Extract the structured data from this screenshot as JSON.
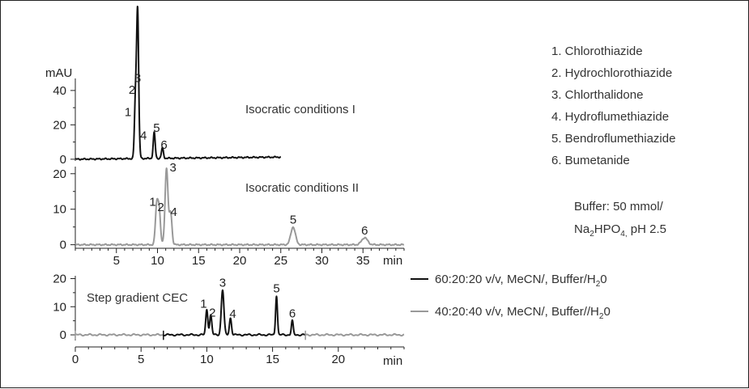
{
  "chart_data": [
    {
      "type": "line",
      "ylabel": "mAU",
      "ylim": [
        -1,
        47
      ],
      "yticks": [
        0,
        20,
        40
      ],
      "xlim": [
        0,
        40
      ],
      "condition_label": "Isocratic conditions I",
      "baseline_end": 25,
      "series": [
        {
          "color": "#111111",
          "peaks": [
            {
              "label": "1",
              "x": 7.3,
              "height": 29,
              "width": 0.12
            },
            {
              "label": "2",
              "x": 7.5,
              "height": 41,
              "width": 0.12
            },
            {
              "label": "3",
              "x": 7.6,
              "height": 44,
              "width": 0.1
            },
            {
              "label": "4",
              "x": 7.7,
              "height": 18,
              "width": 0.12
            },
            {
              "label": "5",
              "x": 9.6,
              "height": 15,
              "width": 0.12
            },
            {
              "label": "6",
              "x": 10.6,
              "height": 6,
              "width": 0.12
            }
          ]
        }
      ]
    },
    {
      "type": "line",
      "ylim": [
        -1,
        22
      ],
      "yticks": [
        0,
        10,
        20
      ],
      "xlim": [
        0,
        40
      ],
      "xticks": [
        5,
        10,
        15,
        20,
        25,
        30,
        35
      ],
      "xlabel": "min",
      "condition_label": "Isocratic conditions II",
      "series": [
        {
          "color": "#999999",
          "peaks": [
            {
              "label": "1",
              "x": 9.9,
              "height": 10.5,
              "width": 0.16
            },
            {
              "label": "2",
              "x": 10.2,
              "height": 9.5,
              "width": 0.16
            },
            {
              "label": "3",
              "x": 11.1,
              "height": 21.5,
              "width": 0.18
            },
            {
              "label": "4",
              "x": 11.6,
              "height": 9,
              "width": 0.16
            },
            {
              "label": "5",
              "x": 26.5,
              "height": 5,
              "width": 0.28
            },
            {
              "label": "6",
              "x": 35.2,
              "height": 2,
              "width": 0.35
            }
          ]
        }
      ]
    },
    {
      "type": "line",
      "ylim": [
        -2,
        21
      ],
      "yticks": [
        0,
        10,
        20
      ],
      "xlim": [
        0,
        25
      ],
      "xticks": [
        0,
        5,
        10,
        15,
        20
      ],
      "xlabel": "min",
      "condition_label": "Step gradient CEC",
      "series": [
        {
          "color": "#999999",
          "segment": [
            0,
            6.7
          ]
        },
        {
          "color": "#111111",
          "segment": [
            6.7,
            17.5
          ],
          "peaks": [
            {
              "label": "1",
              "x": 10.0,
              "height": 9,
              "width": 0.08
            },
            {
              "label": "2",
              "x": 10.3,
              "height": 7,
              "width": 0.08
            },
            {
              "label": "3",
              "x": 11.2,
              "height": 16,
              "width": 0.1
            },
            {
              "label": "4",
              "x": 11.8,
              "height": 6,
              "width": 0.08
            },
            {
              "label": "5",
              "x": 15.3,
              "height": 14,
              "width": 0.07
            },
            {
              "label": "6",
              "x": 16.5,
              "height": 5,
              "width": 0.07
            }
          ]
        },
        {
          "color": "#999999",
          "segment": [
            17.5,
            25
          ]
        }
      ]
    }
  ],
  "compounds": [
    "1.  Chlorothiazide",
    "2.  Hydrochlorothiazide",
    "3.  Chlorthalidone",
    "4.  Hydroflumethiazide",
    "5.  Bendroflumethiazide",
    "6.  Bumetanide"
  ],
  "buffer": {
    "line1": "Buffer: 50 mmol/",
    "line2_a": "Na",
    "line2_sub1": "2",
    "line2_b": "HPO",
    "line2_sub2": "4,",
    "line2_c": " pH 2.5"
  },
  "legend": [
    {
      "color": "#111111",
      "text_a": "60:20:20 v/v, MeCN/, Buffer/H",
      "sub": "2",
      "text_b": "0"
    },
    {
      "color": "#999999",
      "text_a": "40:20:40 v/v, MeCN/, Buffer//H",
      "sub": "2",
      "text_b": "0"
    }
  ]
}
